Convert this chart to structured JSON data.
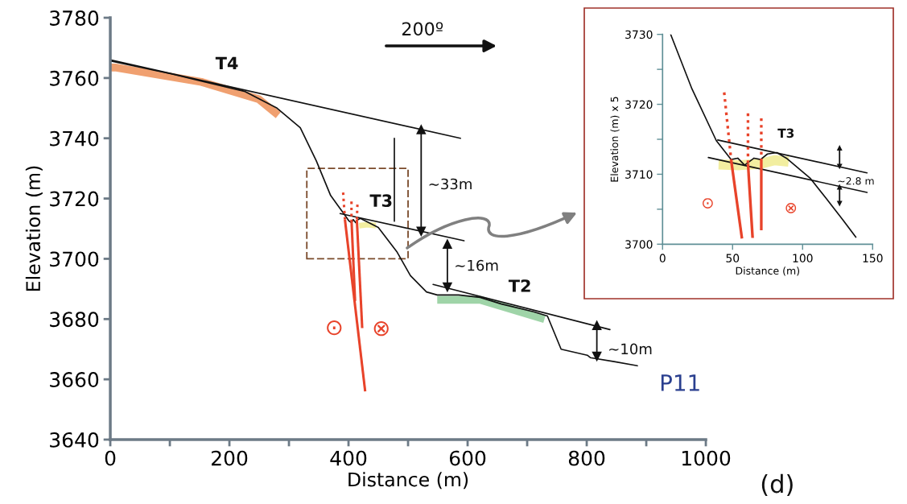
{
  "chart_data": [
    {
      "type": "line",
      "xlabel": "Distance (m)",
      "ylabel": "Elevation (m)",
      "xlim": [
        0,
        1000
      ],
      "ylim": [
        3640,
        3780
      ],
      "xticks": [
        0,
        {
          "value": 100,
          "label": null
        },
        200,
        {
          "value": 300,
          "label": null
        },
        400,
        {
          "value": 500,
          "label": null
        },
        600,
        {
          "value": 700,
          "label": null
        },
        800,
        {
          "value": 900,
          "label": null
        },
        1000
      ],
      "yticks": [
        3640,
        3660,
        3680,
        3700,
        3720,
        3740,
        3760,
        3780
      ],
      "grid": false,
      "legend": false,
      "series": [
        {
          "color": "#f0a070",
          "x": [
            0,
            8,
            153,
            249,
            282
          ],
          "values": [
            3763.5,
            3763.5,
            3758.7,
            3753,
            3747.7
          ]
        },
        {
          "color": "#9fd4a8",
          "x": [
            549,
            621,
            666,
            729
          ],
          "values": [
            3686.4,
            3686.4,
            3683.7,
            3680
          ]
        },
        {
          "color": "#f2eea0",
          "x": [
            418,
            432,
            446
          ],
          "values": [
            3711,
            3711.3,
            3711
          ]
        },
        {
          "color": "#111111",
          "x": [
            0,
            104,
            225,
            280,
            319,
            346,
            370,
            392,
            401,
            405,
            408,
            412,
            416,
            420,
            450,
            481,
            504,
            531,
            549,
            585,
            621,
            657,
            711,
            734,
            757,
            801,
            806,
            846,
            885
          ],
          "values": [
            3765.7,
            3761.3,
            3755.6,
            3750,
            3743.5,
            3732.5,
            3721,
            3715,
            3712.5,
            3712,
            3713,
            3712,
            3713,
            3713.4,
            3710.4,
            3702.4,
            3694.4,
            3689,
            3688,
            3688,
            3687.2,
            3685,
            3682.4,
            3681,
            3670,
            3668,
            3667.2,
            3665.9,
            3664.5
          ]
        },
        {
          "color": "#111111",
          "x": [
            0,
            588
          ],
          "values": [
            3766,
            3740
          ]
        },
        {
          "color": "#111111",
          "x": [
            386,
            594
          ],
          "values": [
            3715,
            3706
          ]
        },
        {
          "color": "#111111",
          "x": [
            542,
            839
          ],
          "values": [
            3691.5,
            3676.5
          ]
        },
        {
          "color": "#111111",
          "x": [
            477,
            477
          ],
          "values": [
            3740,
            3712.5
          ]
        },
        {
          "color": "#111111",
          "marker": "triangle",
          "x": [
            522,
            522
          ],
          "values": [
            3743,
            3709
          ]
        },
        {
          "color": "#111111",
          "marker": "triangle",
          "x": [
            566,
            566
          ],
          "values": [
            3705,
            3690.5
          ]
        },
        {
          "color": "#111111",
          "marker": "triangle",
          "x": [
            817,
            817
          ],
          "values": [
            3678,
            3667.5
          ]
        },
        {
          "color": "#e8432a",
          "x": [
            394,
            428
          ],
          "values": [
            3713,
            3656
          ]
        },
        {
          "color": "#e8432a",
          "x": [
            405,
            411
          ],
          "values": [
            3713,
            3686
          ]
        },
        {
          "color": "#e8432a",
          "x": [
            414,
            423
          ],
          "values": [
            3713,
            3677
          ]
        },
        {
          "color": "#e8432a",
          "line_style": "dotted",
          "x": [
            391,
            394
          ],
          "values": [
            3722,
            3713
          ]
        },
        {
          "color": "#e8432a",
          "line_style": "dotted",
          "x": [
            405,
            405
          ],
          "values": [
            3719,
            3713
          ]
        },
        {
          "color": "#e8432a",
          "line_style": "dotted",
          "x": [
            415,
            414
          ],
          "values": [
            3718,
            3713
          ]
        }
      ],
      "annotations": [
        "T4",
        "T3",
        "T2",
        "~33m",
        "~16m",
        "~10m",
        "⊙",
        "⊗",
        "200º",
        "P11",
        "(d)"
      ]
    },
    {
      "type": "line",
      "xlabel": "Distance (m)",
      "ylabel": "Elevation (m) x 5",
      "xlim": [
        0,
        150
      ],
      "ylim": [
        3700,
        3730
      ],
      "xticks": [
        0,
        50,
        100,
        150
      ],
      "yticks": [
        3700,
        {
          "value": 3705,
          "label": null
        },
        3710,
        {
          "value": 3715,
          "label": null
        },
        3720,
        {
          "value": 3725,
          "label": null
        },
        3730
      ],
      "grid": false,
      "legend": false,
      "series": [
        {
          "color": "#f2eea0",
          "x": [
            40,
            55,
            70,
            80,
            90
          ],
          "values": [
            3711.4,
            3711.3,
            3711.5,
            3712,
            3711.8
          ]
        },
        {
          "color": "#111111",
          "x": [
            5.8,
            21,
            38.4,
            49,
            53.7,
            58.6,
            65.3,
            70,
            74.9,
            81.6,
            88.4,
            105.6,
            117,
            128.7,
            138
          ],
          "values": [
            3730,
            3722.2,
            3714.8,
            3712.1,
            3712.3,
            3711.3,
            3712.3,
            3712.1,
            3712.9,
            3713.1,
            3712.3,
            3709.4,
            3706.5,
            3703.5,
            3701
          ]
        },
        {
          "color": "#111111",
          "x": [
            39.4,
            146
          ],
          "values": [
            3714.9,
            3710.2
          ]
        },
        {
          "color": "#111111",
          "x": [
            32.7,
            146
          ],
          "values": [
            3712.4,
            3707.4
          ]
        },
        {
          "color": "#111111",
          "marker": "triangle",
          "x": [
            126.4,
            126.4
          ],
          "values": [
            3713.8,
            3711.1
          ]
        },
        {
          "color": "#111111",
          "marker": "triangle",
          "x": [
            126.4,
            126.4
          ],
          "values": [
            3705.8,
            3708.2
          ]
        },
        {
          "color": "#e8432a",
          "x": [
            49,
            56.7
          ],
          "values": [
            3712,
            3700.8
          ]
        },
        {
          "color": "#e8432a",
          "x": [
            61,
            64.3
          ],
          "values": [
            3711.5,
            3700.9
          ]
        },
        {
          "color": "#e8432a",
          "x": [
            70.5,
            70.5
          ],
          "values": [
            3712,
            3702
          ]
        },
        {
          "color": "#e8432a",
          "line_style": "dotted",
          "x": [
            44,
            49
          ],
          "values": [
            3721.7,
            3712
          ]
        },
        {
          "color": "#e8432a",
          "line_style": "dotted",
          "x": [
            61,
            61
          ],
          "values": [
            3718.7,
            3711.5
          ]
        },
        {
          "color": "#e8432a",
          "line_style": "dotted",
          "x": [
            70.5,
            70.5
          ],
          "values": [
            3718,
            3712
          ]
        }
      ],
      "annotations": [
        "T3",
        "~2.8 m",
        "⊙",
        "⊗"
      ]
    }
  ]
}
